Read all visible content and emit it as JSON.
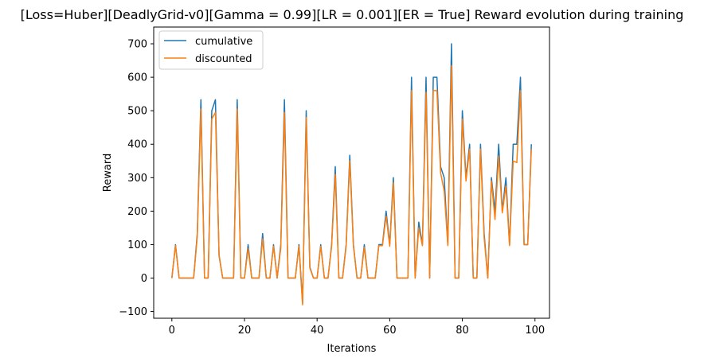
{
  "chart_data": {
    "type": "line",
    "title": "[Loss=Huber][DeadlyGrid-v0][Gamma = 0.99][LR = 0.001][ER = True] Reward evolution during training",
    "xlabel": "Iterations",
    "ylabel": "Reward",
    "xlim": [
      -5,
      104
    ],
    "ylim": [
      -120,
      750
    ],
    "xticks": [
      0,
      20,
      40,
      60,
      80,
      100
    ],
    "yticks": [
      -100,
      0,
      100,
      200,
      300,
      400,
      500,
      600,
      700
    ],
    "grid": false,
    "legend_position": "top-left",
    "x": [
      0,
      1,
      2,
      3,
      4,
      5,
      6,
      7,
      8,
      9,
      10,
      11,
      12,
      13,
      14,
      15,
      16,
      17,
      18,
      19,
      20,
      21,
      22,
      23,
      24,
      25,
      26,
      27,
      28,
      29,
      30,
      31,
      32,
      33,
      34,
      35,
      36,
      37,
      38,
      39,
      40,
      41,
      42,
      43,
      44,
      45,
      46,
      47,
      48,
      49,
      50,
      51,
      52,
      53,
      54,
      55,
      56,
      57,
      58,
      59,
      60,
      61,
      62,
      63,
      64,
      65,
      66,
      67,
      68,
      69,
      70,
      71,
      72,
      73,
      74,
      75,
      76,
      77,
      78,
      79,
      80,
      81,
      82,
      83,
      84,
      85,
      86,
      87,
      88,
      89,
      90,
      91,
      92,
      93,
      94,
      95,
      96,
      97,
      98,
      99
    ],
    "series": [
      {
        "name": "cumulative",
        "color": "#1f77b4",
        "values": [
          0,
          100,
          0,
          0,
          0,
          0,
          0,
          133,
          533,
          0,
          0,
          500,
          533,
          67,
          0,
          0,
          0,
          0,
          533,
          0,
          0,
          100,
          0,
          0,
          0,
          133,
          0,
          0,
          100,
          0,
          100,
          533,
          0,
          0,
          0,
          100,
          -75,
          500,
          33,
          0,
          0,
          100,
          0,
          0,
          100,
          333,
          0,
          0,
          100,
          367,
          100,
          0,
          0,
          100,
          0,
          0,
          0,
          100,
          100,
          200,
          100,
          300,
          0,
          0,
          0,
          0,
          600,
          0,
          167,
          100,
          600,
          0,
          600,
          600,
          333,
          300,
          100,
          700,
          0,
          0,
          500,
          300,
          400,
          0,
          0,
          400,
          133,
          0,
          300,
          200,
          400,
          200,
          300,
          100,
          400,
          400,
          600,
          100,
          100,
          400
        ]
      },
      {
        "name": "discounted",
        "color": "#ff7f0e",
        "values": [
          0,
          97,
          0,
          0,
          0,
          0,
          0,
          123,
          505,
          0,
          0,
          475,
          495,
          70,
          0,
          0,
          0,
          0,
          505,
          0,
          0,
          88,
          0,
          0,
          0,
          117,
          0,
          0,
          95,
          0,
          90,
          495,
          0,
          0,
          0,
          95,
          -80,
          480,
          30,
          0,
          0,
          95,
          0,
          0,
          95,
          310,
          0,
          0,
          95,
          350,
          95,
          0,
          0,
          92,
          0,
          0,
          0,
          97,
          97,
          185,
          95,
          285,
          0,
          0,
          0,
          0,
          560,
          0,
          150,
          97,
          555,
          0,
          560,
          560,
          315,
          260,
          97,
          635,
          0,
          0,
          475,
          290,
          385,
          0,
          0,
          385,
          120,
          0,
          290,
          175,
          365,
          195,
          275,
          97,
          350,
          345,
          560,
          100,
          100,
          385
        ]
      }
    ]
  }
}
